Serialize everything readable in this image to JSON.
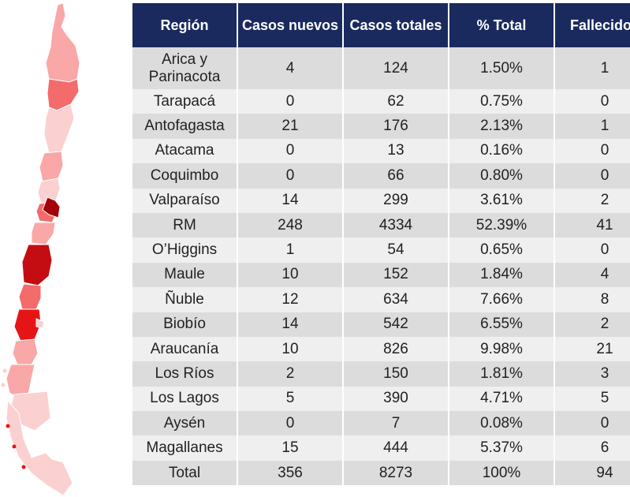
{
  "chart_data": {
    "type": "table",
    "columns": [
      "Región",
      "Casos nuevos",
      "Casos totales",
      "% Total",
      "Fallecidos"
    ],
    "rows": [
      [
        "Arica y Parinacota",
        "4",
        "124",
        "1.50%",
        "1"
      ],
      [
        "Tarapacá",
        "0",
        "62",
        "0.75%",
        "0"
      ],
      [
        "Antofagasta",
        "21",
        "176",
        "2.13%",
        "1"
      ],
      [
        "Atacama",
        "0",
        "13",
        "0.16%",
        "0"
      ],
      [
        "Coquimbo",
        "0",
        "66",
        "0.80%",
        "0"
      ],
      [
        "Valparaíso",
        "14",
        "299",
        "3.61%",
        "2"
      ],
      [
        "RM",
        "248",
        "4334",
        "52.39%",
        "41"
      ],
      [
        "O’Higgins",
        "1",
        "54",
        "0.65%",
        "0"
      ],
      [
        "Maule",
        "10",
        "152",
        "1.84%",
        "4"
      ],
      [
        "Ñuble",
        "12",
        "634",
        "7.66%",
        "8"
      ],
      [
        "Biobío",
        "14",
        "542",
        "6.55%",
        "2"
      ],
      [
        "Araucanía",
        "10",
        "826",
        "9.98%",
        "21"
      ],
      [
        "Los Ríos",
        "2",
        "150",
        "1.81%",
        "3"
      ],
      [
        "Los Lagos",
        "5",
        "390",
        "4.71%",
        "5"
      ],
      [
        "Aysén",
        "0",
        "7",
        "0.08%",
        "0"
      ],
      [
        "Magallanes",
        "15",
        "444",
        "5.37%",
        "6"
      ],
      [
        "Total",
        "356",
        "8273",
        "100%",
        "94"
      ]
    ]
  },
  "colors": {
    "header_bg": "#1b2a5e",
    "header_text": "#ffffff",
    "row_odd": "#dcdcdc",
    "row_even": "#efefef",
    "map_palette": [
      "#fbd0d0",
      "#f9a7a7",
      "#f36b6b",
      "#e61515",
      "#c40d12",
      "#a3000a"
    ]
  },
  "map": {
    "type": "choropleth",
    "regions": [
      {
        "name": "Arica y Parinacota",
        "color": "#f9a7a7"
      },
      {
        "name": "Tarapacá",
        "color": "#f36b6b"
      },
      {
        "name": "Antofagasta",
        "color": "#fbd0d0"
      },
      {
        "name": "Atacama",
        "color": "#f9a7a7"
      },
      {
        "name": "Coquimbo",
        "color": "#fbd0d0"
      },
      {
        "name": "Valparaíso",
        "color": "#f36b6b"
      },
      {
        "name": "RM",
        "color": "#a3000a"
      },
      {
        "name": "O’Higgins",
        "color": "#f9a7a7"
      },
      {
        "name": "Maule",
        "color": "#c40d12"
      },
      {
        "name": "Ñuble",
        "color": "#f36b6b"
      },
      {
        "name": "Biobío",
        "color": "#e61515"
      },
      {
        "name": "Araucanía",
        "color": "#f9a7a7"
      },
      {
        "name": "Los Ríos",
        "color": "#f9a7a7"
      },
      {
        "name": "Los Lagos",
        "color": "#fbd0d0"
      },
      {
        "name": "Aysén",
        "color": "#fbd0d0"
      },
      {
        "name": "Magallanes",
        "color": "#e61515"
      }
    ]
  }
}
